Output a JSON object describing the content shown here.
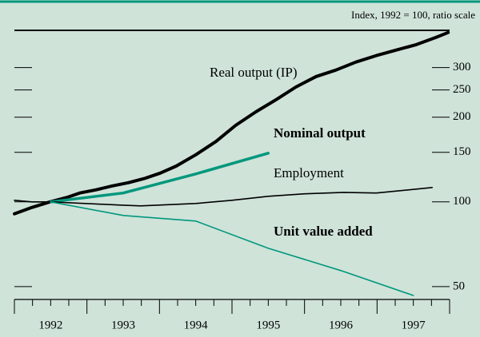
{
  "chart_data": {
    "type": "line",
    "note": "Index, 1992 = 100, ratio scale",
    "log_scale": true,
    "ylim": [
      45,
      407
    ],
    "yticks": [
      50,
      100,
      150,
      200,
      250,
      300
    ],
    "xlim": [
      1992,
      1998
    ],
    "xticks": [
      {
        "value": 1992.5,
        "label": "1992"
      },
      {
        "value": 1993.5,
        "label": "1993"
      },
      {
        "value": 1994.5,
        "label": "1994"
      },
      {
        "value": 1995.5,
        "label": "1995"
      },
      {
        "value": 1996.5,
        "label": "1996"
      },
      {
        "value": 1997.5,
        "label": "1997"
      }
    ],
    "series": [
      {
        "name": "Real output (IP)",
        "color": "#000000",
        "line_width": 4,
        "x": [
          1992.0,
          1992.24,
          1992.49,
          1992.74,
          1992.9,
          1993.12,
          1993.35,
          1993.57,
          1993.79,
          1994.01,
          1994.23,
          1994.5,
          1994.78,
          1995.05,
          1995.33,
          1995.61,
          1995.88,
          1996.16,
          1996.43,
          1996.71,
          1996.99,
          1997.26,
          1997.54,
          1997.81,
          1997.98
        ],
        "values": [
          90.7,
          95.5,
          100,
          104,
          107.5,
          110.3,
          114,
          117,
          121,
          126.5,
          134,
          147,
          164,
          187,
          209,
          231,
          256,
          279,
          294,
          314,
          331,
          346,
          362,
          384,
          400
        ]
      },
      {
        "name": "Nominal output",
        "color": "#00977c",
        "line_width": 3.5,
        "x": [
          1992.5,
          1993.5,
          1994.5,
          1995.5
        ],
        "values": [
          100,
          107.5,
          125.7,
          149
        ]
      },
      {
        "name": "Employment",
        "color": "#000000",
        "line_width": 1.6,
        "x": [
          1992.0,
          1992.24,
          1992.5,
          1993.46,
          1993.74,
          1994.5,
          1995.0,
          1995.5,
          1996.0,
          1996.54,
          1996.99,
          1997.43,
          1997.76
        ],
        "values": [
          101.3,
          100,
          100,
          97.4,
          96.8,
          98.7,
          101.3,
          104.7,
          106.8,
          108.1,
          107.5,
          110.3,
          112.5
        ]
      },
      {
        "name": "Unit value added",
        "color": "#00977c",
        "line_width": 1.6,
        "x": [
          1992.5,
          1993.5,
          1994.5,
          1995.5,
          1996.5,
          1997.5
        ],
        "values": [
          100,
          89.5,
          85.5,
          68.4,
          57,
          46.5
        ]
      }
    ]
  }
}
